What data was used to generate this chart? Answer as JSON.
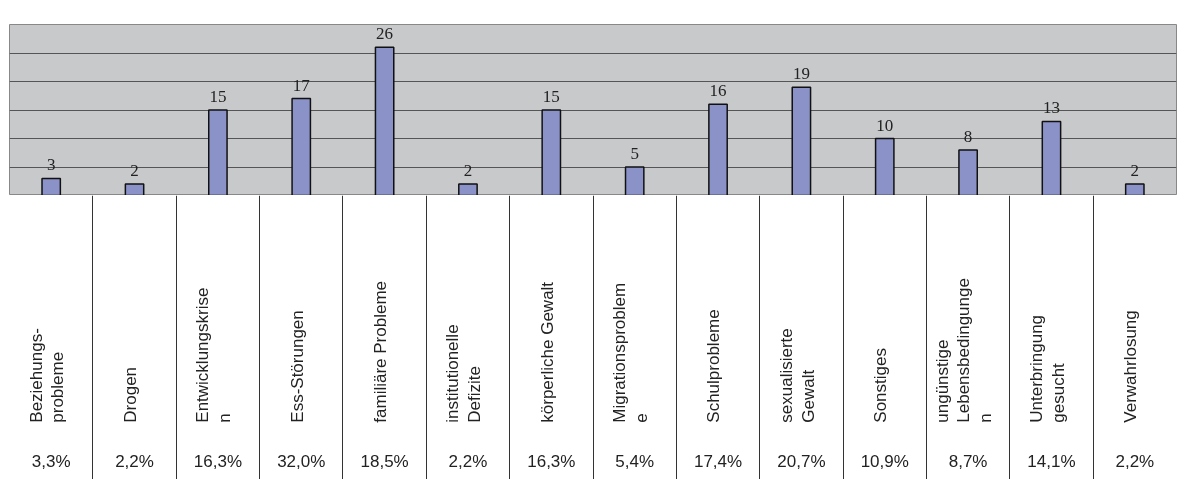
{
  "chart_data": {
    "type": "bar",
    "categories": [
      "Beziehungs-\nprobleme",
      "Drogen",
      "Entwicklungskrise\nn",
      "Ess-Störungen",
      "familiäre Probleme",
      "institutionelle\nDefizite",
      "körperliche Gewalt",
      "Migrationsproblem\ne",
      "Schulprobleme",
      "sexualisierte\nGewalt",
      "Sonstiges",
      "ungünstige\nLebensbedingunge\nn",
      "Unterbringung\ngesucht",
      "Verwahrlosung"
    ],
    "values": [
      3,
      2,
      15,
      17,
      26,
      2,
      15,
      5,
      16,
      19,
      10,
      8,
      13,
      2
    ],
    "color": "#8a92c8",
    "ylim": [
      0,
      30
    ],
    "yticks": [
      {
        "value": 0,
        "label": null
      },
      {
        "value": 5,
        "label": null
      },
      {
        "value": 10,
        "label": null
      },
      {
        "value": 15,
        "label": null
      },
      {
        "value": 20,
        "label": null
      },
      {
        "value": 25,
        "label": null
      },
      {
        "value": 30,
        "label": null
      }
    ],
    "grid": "y",
    "tick_labels": "x",
    "data_labels": true,
    "annotations": [
      "3,3%",
      "2,2%",
      "16,3%",
      "32,0%",
      "18,5%",
      "2,2%",
      "16,3%",
      "5,4%",
      "17,4%",
      "20,7%",
      "10,9%",
      "8,7%",
      "14,1%",
      "2,2%"
    ]
  }
}
